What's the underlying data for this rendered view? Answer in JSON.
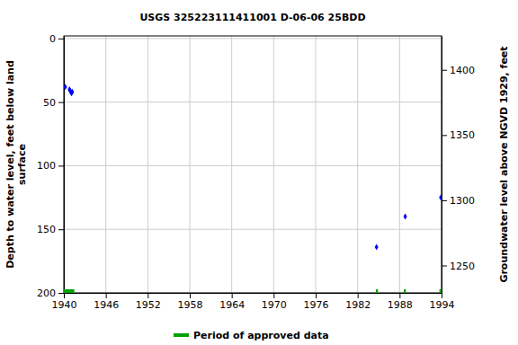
{
  "chart_data": {
    "type": "scatter",
    "title": "USGS 325223111411001 D-06-06 25BDD",
    "ylabel": [
      "Depth to water level, feet below land",
      "surface"
    ],
    "y2label": "Groundwater level above NGVD 1929, feet",
    "x": [
      1940.2,
      1940.8,
      1940.9,
      1941.0,
      1941.1,
      1941.2,
      1984.7,
      1988.8,
      1993.9
    ],
    "values": [
      38,
      40,
      41,
      42,
      43,
      42,
      164,
      140,
      125
    ],
    "color": "#0000ff",
    "marker": "diamond",
    "xlim": [
      1940,
      1994
    ],
    "xticks": [
      1940,
      1946,
      1952,
      1958,
      1964,
      1970,
      1976,
      1982,
      1988,
      1994
    ],
    "ylim": [
      -2,
      200
    ],
    "yticks": [
      0,
      50,
      100,
      150,
      200
    ],
    "y2lim": [
      1426,
      1229
    ],
    "y2ticks": [
      1250,
      1300,
      1350,
      1400
    ],
    "grid": true,
    "approved_periods": {
      "name": "Period of approved data",
      "color": "#00a000",
      "start": [
        1940.0,
        1984.6,
        1988.6,
        1993.7
      ],
      "end": [
        1941.5,
        1984.9,
        1988.9,
        1994.0
      ]
    },
    "legend": "bottom"
  }
}
